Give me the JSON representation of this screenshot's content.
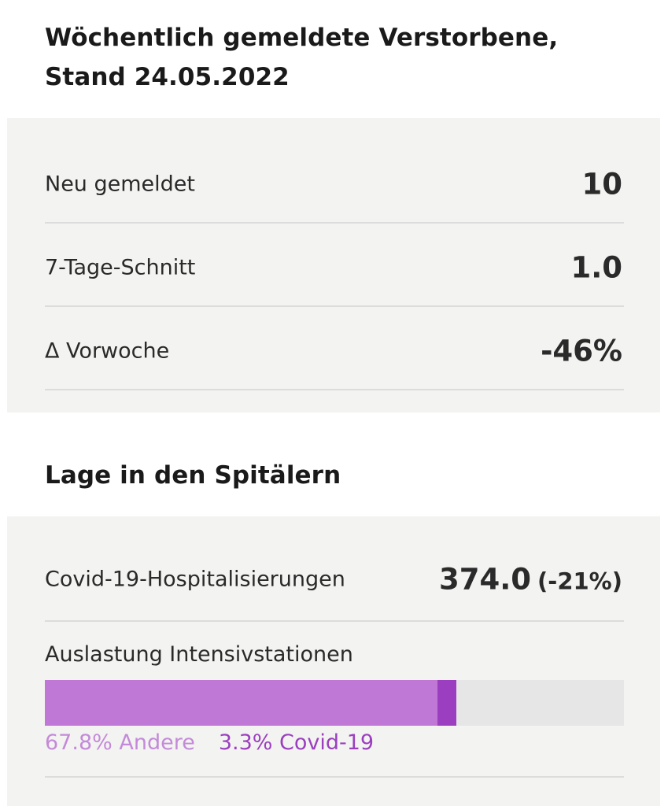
{
  "deaths": {
    "title": "Wöchentlich gemeldete Verstorbene, Stand 24.05.2022",
    "rows": [
      {
        "label": "Neu gemeldet",
        "value": "10"
      },
      {
        "label": "7-Tage-Schnitt",
        "value": "1.0"
      },
      {
        "label": "Δ Vorwoche",
        "value": "-46%"
      }
    ]
  },
  "hospital": {
    "title": "Lage in den Spitälern",
    "hospitalizations": {
      "label": "Covid-19-Hospitalisierungen",
      "value": "374.0",
      "change": "(-21%)"
    },
    "icu": {
      "label": "Auslastung Intensivstationen",
      "segments": [
        {
          "label": "67.8% Andere",
          "percent": 67.8,
          "color": "#bf78d6",
          "text_color": "#c48ad9"
        },
        {
          "label": "3.3% Covid-19",
          "percent": 3.3,
          "color": "#9b3fc0",
          "text_color": "#9b3fc0"
        }
      ],
      "track_color": "#e6e6e6"
    }
  }
}
